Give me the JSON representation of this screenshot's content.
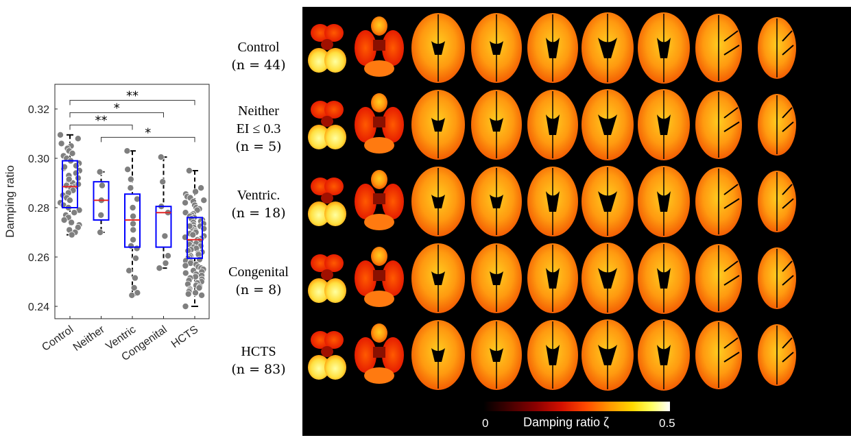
{
  "chart_data": {
    "type": "box",
    "ylabel": "Damping ratio",
    "ylim": [
      0.235,
      0.33
    ],
    "yticks": [
      0.24,
      0.26,
      0.28,
      0.3,
      0.32
    ],
    "ytick_labels": [
      "0.24",
      "0.26",
      "0.28",
      "0.30",
      "0.32"
    ],
    "categories": [
      "Control",
      "Neither",
      "Ventric",
      "Congenital",
      "HCTS"
    ],
    "boxes": [
      {
        "name": "Control",
        "whisker_low": 0.269,
        "q1": 0.28,
        "median": 0.2885,
        "q3": 0.299,
        "whisker_high": 0.3095
      },
      {
        "name": "Neither",
        "whisker_low": 0.27,
        "q1": 0.275,
        "median": 0.283,
        "q3": 0.2905,
        "whisker_high": 0.2945
      },
      {
        "name": "Ventric",
        "whisker_low": 0.2445,
        "q1": 0.264,
        "median": 0.275,
        "q3": 0.2855,
        "whisker_high": 0.303
      },
      {
        "name": "Congenital",
        "whisker_low": 0.2555,
        "q1": 0.264,
        "median": 0.278,
        "q3": 0.2805,
        "whisker_high": 0.3005
      },
      {
        "name": "HCTS",
        "whisker_low": 0.24,
        "q1": 0.2595,
        "median": 0.267,
        "q3": 0.276,
        "whisker_high": 0.295
      }
    ],
    "points": [
      [
        0.3095,
        0.308,
        0.306,
        0.305,
        0.304,
        0.303,
        0.302,
        0.301,
        0.3,
        0.299,
        0.298,
        0.297,
        0.296,
        0.295,
        0.294,
        0.293,
        0.292,
        0.291,
        0.29,
        0.289,
        0.2885,
        0.288,
        0.287,
        0.286,
        0.285,
        0.284,
        0.283,
        0.282,
        0.281,
        0.28,
        0.279,
        0.278,
        0.277,
        0.276,
        0.275,
        0.274,
        0.273,
        0.272,
        0.271,
        0.27,
        0.269,
        0.2895,
        0.2915,
        0.2965
      ],
      [
        0.2945,
        0.289,
        0.283,
        0.277,
        0.27
      ],
      [
        0.303,
        0.2955,
        0.2915,
        0.288,
        0.2835,
        0.28,
        0.2765,
        0.2735,
        0.271,
        0.267,
        0.2645,
        0.2635,
        0.2595,
        0.2545,
        0.2515,
        0.2475,
        0.2455,
        0.2445
      ],
      [
        0.3005,
        0.2905,
        0.2805,
        0.278,
        0.2685,
        0.2605,
        0.2575,
        0.2555
      ],
      [
        0.295,
        0.288,
        0.2865,
        0.2855,
        0.2845,
        0.284,
        0.283,
        0.2825,
        0.282,
        0.281,
        0.28,
        0.2795,
        0.279,
        0.278,
        0.2775,
        0.277,
        0.2765,
        0.276,
        0.2755,
        0.275,
        0.2745,
        0.274,
        0.2735,
        0.273,
        0.2725,
        0.272,
        0.2715,
        0.271,
        0.2705,
        0.27,
        0.2695,
        0.269,
        0.2685,
        0.268,
        0.2675,
        0.267,
        0.2665,
        0.266,
        0.2655,
        0.265,
        0.2645,
        0.264,
        0.2635,
        0.263,
        0.2625,
        0.262,
        0.2615,
        0.261,
        0.2605,
        0.26,
        0.2595,
        0.259,
        0.2585,
        0.258,
        0.2575,
        0.257,
        0.2565,
        0.256,
        0.2555,
        0.255,
        0.2545,
        0.254,
        0.2535,
        0.253,
        0.2525,
        0.252,
        0.2515,
        0.251,
        0.2505,
        0.25,
        0.2495,
        0.249,
        0.2485,
        0.248,
        0.2475,
        0.247,
        0.2465,
        0.246,
        0.2455,
        0.245,
        0.2445,
        0.24,
        0.2725
      ]
    ],
    "significance": [
      {
        "from": "Control",
        "to": "HCTS",
        "label": "**",
        "y": 0.3235
      },
      {
        "from": "Control",
        "to": "Congenital",
        "label": "*",
        "y": 0.3185
      },
      {
        "from": "Control",
        "to": "Ventric",
        "label": "**",
        "y": 0.3135
      },
      {
        "from": "Neither",
        "to": "HCTS",
        "label": "*",
        "y": 0.3085
      }
    ],
    "colors": {
      "box": "#0000ff",
      "median": "#e32626",
      "points": "#7f7f7f",
      "point_edge": "#ffffff"
    }
  },
  "row_labels": [
    {
      "line1": "Control",
      "line2": "",
      "n_text": "(n = 44)"
    },
    {
      "line1": "Neither",
      "line2": "EI ≤ 0.3",
      "n_text": "(n = 5)"
    },
    {
      "line1": "Ventric.",
      "line2": "",
      "n_text": "(n = 18)"
    },
    {
      "line1": "Congenital",
      "line2": "",
      "n_text": "(n = 8)"
    },
    {
      "line1": "HCTS",
      "line2": "",
      "n_text": "(n = 83)"
    }
  ],
  "colorbar": {
    "min_label": "0",
    "max_label": "0.5",
    "title": "Damping ratio ζ"
  }
}
